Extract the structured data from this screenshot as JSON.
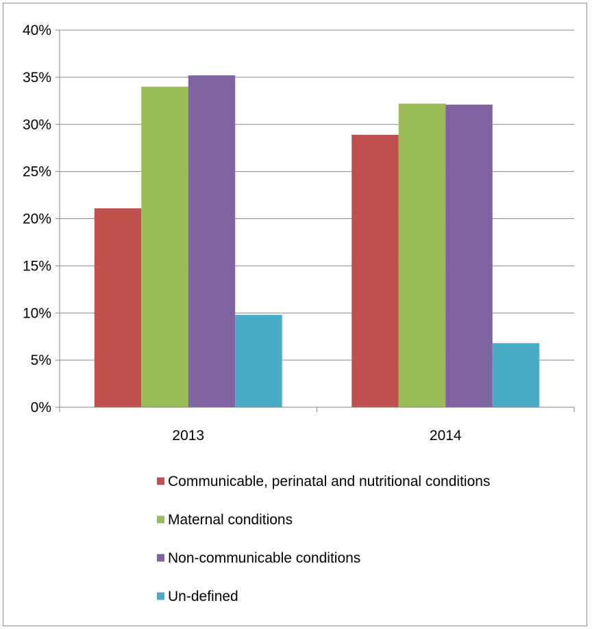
{
  "chart_data": {
    "type": "bar",
    "categories": [
      "2013",
      "2014"
    ],
    "series": [
      {
        "name": "Communicable, perinatal and nutritional conditions",
        "color": "#C0504D",
        "values": [
          21.1,
          28.9
        ]
      },
      {
        "name": "Maternal conditions",
        "color": "#9BBB59",
        "values": [
          34.0,
          32.2
        ]
      },
      {
        "name": "Non-communicable conditions",
        "color": "#8064A2",
        "values": [
          35.2,
          32.1
        ]
      },
      {
        "name": "Un-defined",
        "color": "#4BACC6",
        "values": [
          9.8,
          6.8
        ]
      }
    ],
    "y_ticks": [
      "0%",
      "5%",
      "10%",
      "15%",
      "20%",
      "25%",
      "30%",
      "35%",
      "40%"
    ],
    "ylim": [
      0,
      40
    ],
    "grid": true,
    "legend_position": "bottom"
  }
}
